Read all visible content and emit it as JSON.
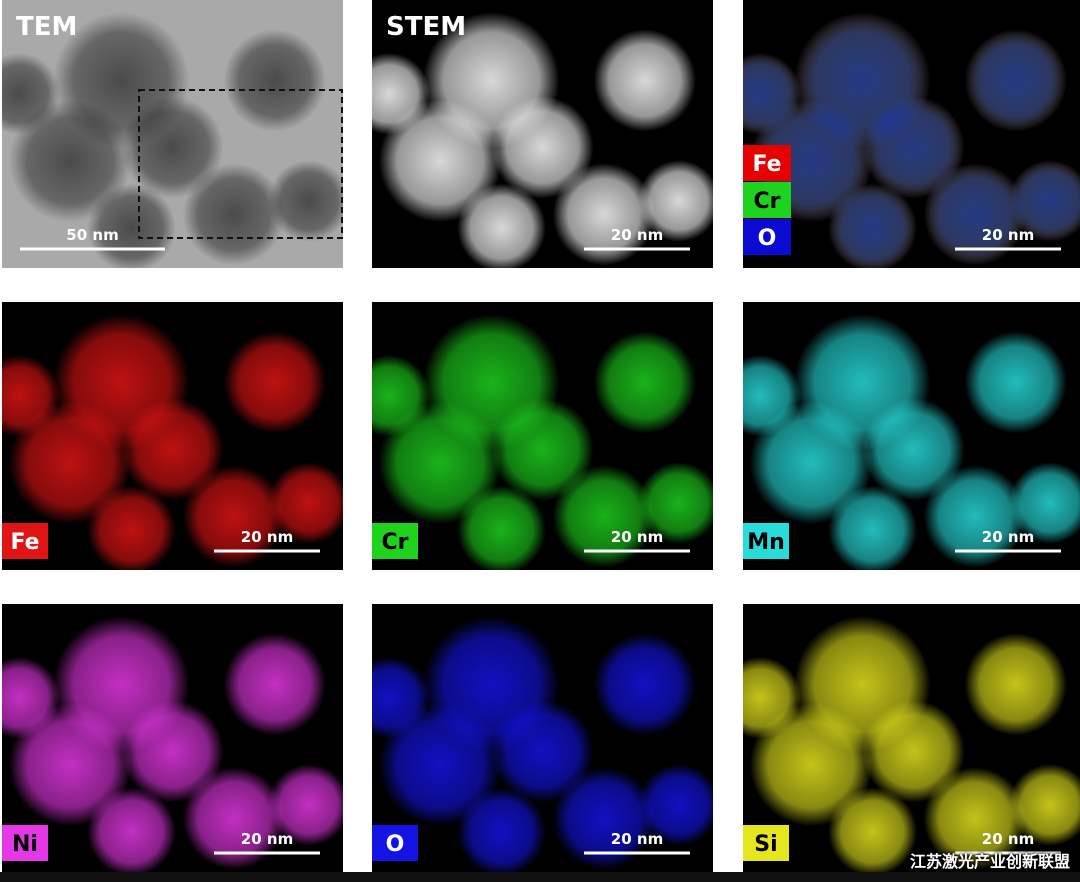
{
  "panels": [
    {
      "label": "TEM",
      "scale_bar": "50 nm"
    },
    {
      "label": "STEM",
      "scale_bar": "20 nm"
    },
    {
      "legend": [
        {
          "label": "Fe",
          "color": "#e60000"
        },
        {
          "label": "Cr",
          "color": "#1fd21f"
        },
        {
          "label": "O",
          "color": "#0a0ad2"
        }
      ],
      "scale_bar": "20 nm"
    },
    {
      "label": "Fe",
      "color": "#e01414",
      "scale_bar": "20 nm"
    },
    {
      "label": "Cr",
      "color": "#1ed21e",
      "scale_bar": "20 nm"
    },
    {
      "label": "Mn",
      "color": "#28dcdc",
      "scale_bar": "20 nm"
    },
    {
      "label": "Ni",
      "color": "#e637e6",
      "scale_bar": "20 nm"
    },
    {
      "label": "O",
      "color": "#1414e6",
      "scale_bar": "20 nm"
    },
    {
      "label": "Si",
      "color": "#e6e61e",
      "scale_bar": "20 nm"
    }
  ],
  "watermark": "江苏激光产业创新联盟"
}
